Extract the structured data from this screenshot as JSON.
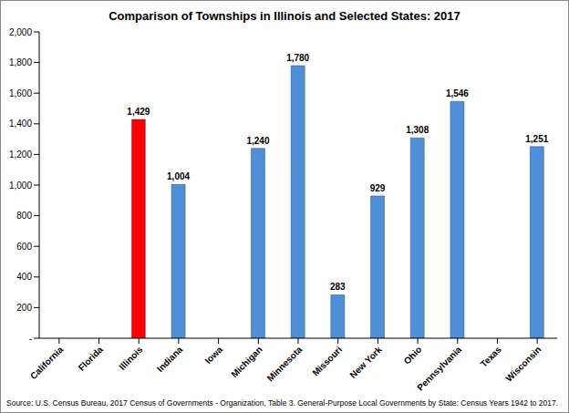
{
  "chart_data": {
    "type": "bar",
    "title": "Comparison of Townships in Illinois and Selected States: 2017",
    "source": "Source: U.S. Census Bureau, 2017 Census of Governments - Organization, Table 3. General-Purpose Local Governments by State: Census Years 1942 to 2017.",
    "categories": [
      "California",
      "Florida",
      "Illinois",
      "Indiana",
      "Iowa",
      "Michigan",
      "Minnesota",
      "Missouri",
      "New York",
      "Ohio",
      "Pennsylvania",
      "Texas",
      "Wisconsin"
    ],
    "values": [
      0,
      0,
      1429,
      1004,
      0,
      1240,
      1780,
      283,
      929,
      1308,
      1546,
      0,
      1251
    ],
    "value_labels": [
      "-",
      "-",
      "1,429",
      "1,004",
      "-",
      "1,240",
      "1,780",
      "283",
      "929",
      "1,308",
      "1,546",
      "-",
      "1,251"
    ],
    "data_labels": true,
    "colors": [
      "#4f8fd8",
      "#4f8fd8",
      "#ff0000",
      "#4f8fd8",
      "#4f8fd8",
      "#4f8fd8",
      "#4f8fd8",
      "#4f8fd8",
      "#4f8fd8",
      "#4f8fd8",
      "#4f8fd8",
      "#4f8fd8",
      "#4f8fd8"
    ],
    "ylim": [
      0,
      2000
    ],
    "yticks": [
      {
        "value": 0,
        "label": "-"
      },
      200,
      400,
      600,
      800,
      {
        "value": 1000,
        "label": "1,000"
      },
      {
        "value": 1200,
        "label": "1,200"
      },
      {
        "value": 1400,
        "label": "1,400"
      },
      {
        "value": 1600,
        "label": "1,600"
      },
      {
        "value": 1800,
        "label": "1,800"
      },
      {
        "value": 2000,
        "label": "2,000"
      }
    ],
    "grid": false
  }
}
